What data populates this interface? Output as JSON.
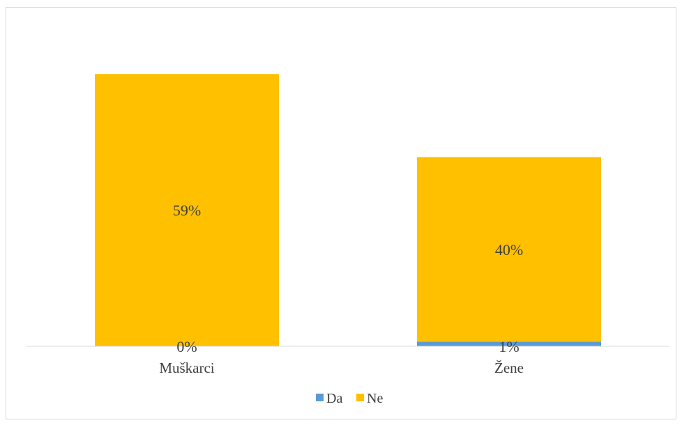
{
  "chart_data": {
    "type": "bar",
    "stacked": true,
    "categories": [
      "Muškarci",
      "Žene"
    ],
    "series": [
      {
        "name": "Da",
        "values": [
          0,
          1
        ],
        "labels": [
          "0%",
          "1%"
        ],
        "color": "#5B9BD5"
      },
      {
        "name": "Ne",
        "values": [
          59,
          40
        ],
        "labels": [
          "59%",
          "40%"
        ],
        "color": "#FFC000"
      }
    ],
    "ylim": [
      0,
      69
    ],
    "grid": false,
    "legend_position": "bottom",
    "title": "",
    "xlabel": "",
    "ylabel": ""
  }
}
